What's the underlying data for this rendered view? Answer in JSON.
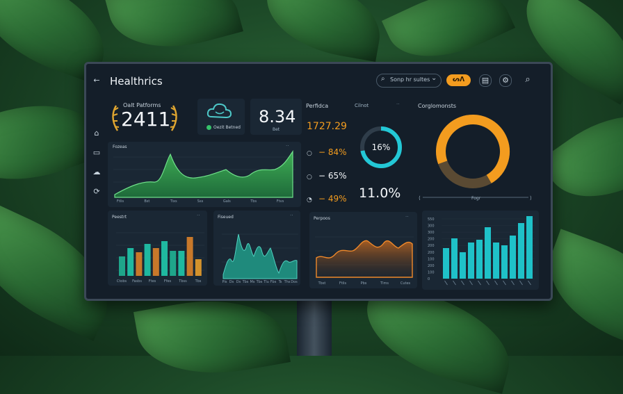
{
  "app": {
    "title": "Healthrics"
  },
  "toolbar": {
    "search_placeholder": "Sonp hr sultes",
    "chevron": "⌄",
    "badge_label": "ᔕᐱ",
    "icons": [
      "document-icon",
      "settings-icon",
      "search-icon"
    ]
  },
  "sidebar": {
    "icons": [
      "home-icon",
      "chat-icon",
      "cloud-icon",
      "share-icon"
    ]
  },
  "kpi_main": {
    "label": "Oalt Patforms",
    "value": "2411"
  },
  "kpi_cloud": {
    "label": "Oezit Betned"
  },
  "kpi_number": {
    "value": "8.34",
    "label": "Bet"
  },
  "area_chart": {
    "title": "Fozeas",
    "x_labels": [
      "Ftlis",
      "Bst",
      "Tixs",
      "Sss",
      "Gals",
      "Tbs",
      "Ftvs"
    ]
  },
  "stats": {
    "title": "Perfidca",
    "primary": "1727.29",
    "rows": [
      {
        "value": "− 84%",
        "icon": "circle-icon"
      },
      {
        "value": "− 65%",
        "icon": "circle-icon"
      },
      {
        "value": "− 49%",
        "icon": "gauge-icon"
      }
    ]
  },
  "ring_small": {
    "title": "Cilnot",
    "value": "16%",
    "progress": 0.72
  },
  "big_percent": {
    "value": "11.0%"
  },
  "donut": {
    "title": "Corglomonsts",
    "axis_label": "Fogr",
    "orange_fraction": 0.72
  },
  "bar_chart_1": {
    "title": "Peestrt",
    "x_labels": [
      "Ctobs",
      "Fasbs",
      "Ftes",
      "Ffes",
      "Tbss",
      "Tbs"
    ]
  },
  "area_chart_2": {
    "title": "Fiseued",
    "x_labels": [
      "Pis",
      "Ds",
      "Ds",
      "Tbs",
      "Ms",
      "Tbs",
      "Tlu",
      "Fbs",
      "Ts",
      "Ths",
      "Dos"
    ]
  },
  "line_chart": {
    "title": "Perpoos",
    "x_labels": [
      "Tbst",
      "Ftlis",
      "Pbs",
      "Tlms",
      "Cutes"
    ]
  },
  "bar_chart_2": {
    "y_labels": [
      "550",
      "300",
      "300",
      "200",
      "200",
      "200",
      "100",
      "200",
      "100",
      "0"
    ]
  },
  "colors": {
    "accent_orange": "#f39c1f",
    "accent_cyan": "#23c8d6",
    "accent_green": "#2e9a5c",
    "panel": "#141e29"
  }
}
